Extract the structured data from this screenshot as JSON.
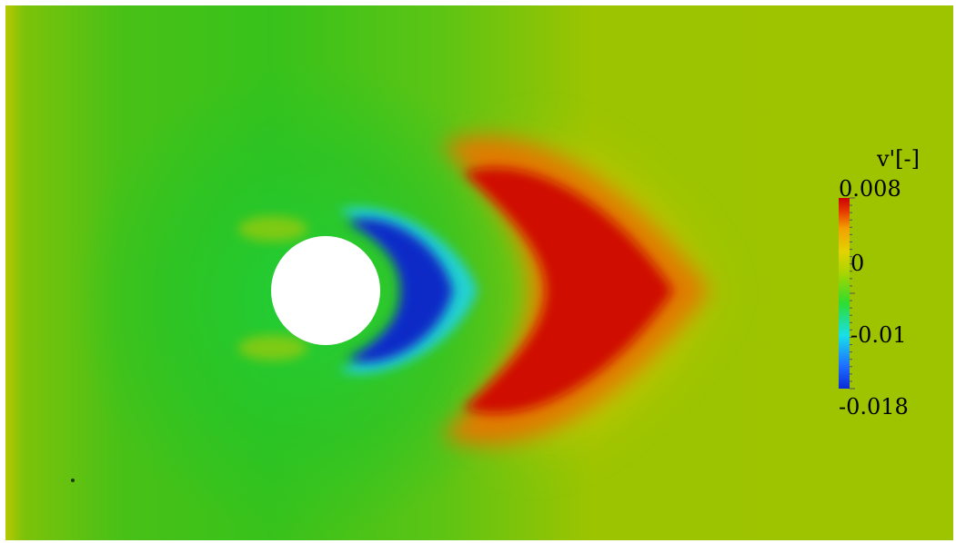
{
  "colorbar": {
    "title": "v'[-]",
    "max_label": "0.008",
    "zero_label": "0",
    "mid_label": "-0.01",
    "min_label": "-0.018",
    "colors": [
      "#0a2bd8",
      "#1e90ff",
      "#18e0e8",
      "#2fdc2f",
      "#a6d400",
      "#e3d300",
      "#f3a000",
      "#e63a00",
      "#cc0000"
    ]
  },
  "field_colors": {
    "background": "#9cc400",
    "upstream_green": "#39c21a",
    "wake_blue": "#0f2cc7",
    "wake_cyan": "#23d2d2",
    "red_core": "#cf0b00",
    "orange_halo": "#e07a00",
    "yellow_halo": "#d8c800",
    "cylinder": "#ffffff"
  }
}
